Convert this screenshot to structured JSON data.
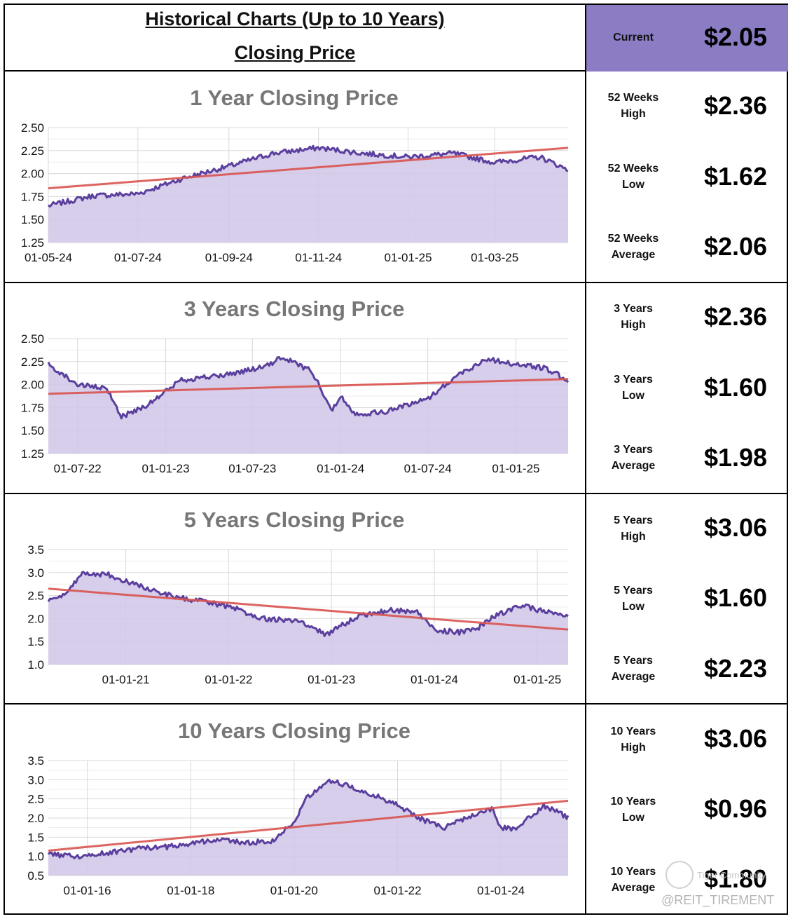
{
  "header": {
    "title_line1": "Historical Charts (Up to 10 Years)",
    "title_line2": "Closing Price"
  },
  "current": {
    "label": "Current",
    "value": "$2.05"
  },
  "colors": {
    "accent": "#8b7cc3",
    "line": "#5b3f9e",
    "fill": "#cfc6e6",
    "trend": "#d9534f",
    "grid": "#d9d9d9",
    "title_gray": "#777777"
  },
  "sections": [
    {
      "stats": [
        {
          "label": "52 Weeks\nHigh",
          "value": "$2.36"
        },
        {
          "label": "52 Weeks\nLow",
          "value": "$1.62"
        },
        {
          "label": "52 Weeks\nAverage",
          "value": "$2.06"
        }
      ]
    },
    {
      "stats": [
        {
          "label": "3 Years\nHigh",
          "value": "$2.36"
        },
        {
          "label": "3 Years\nLow",
          "value": "$1.60"
        },
        {
          "label": "3 Years\nAverage",
          "value": "$1.98"
        }
      ]
    },
    {
      "stats": [
        {
          "label": "5 Years\nHigh",
          "value": "$3.06"
        },
        {
          "label": "5 Years\nLow",
          "value": "$1.60"
        },
        {
          "label": "5 Years\nAverage",
          "value": "$2.23"
        }
      ]
    },
    {
      "stats": [
        {
          "label": "10 Years\nHigh",
          "value": "$3.06"
        },
        {
          "label": "10 Years\nLow",
          "value": "$0.96"
        },
        {
          "label": "10 Years\nAverage",
          "value": "$1.80"
        }
      ]
    }
  ],
  "chart_data": [
    {
      "type": "area",
      "title": "1 Year Closing Price",
      "ylim": [
        1.25,
        2.5
      ],
      "yticks": [
        "2.50",
        "2.25",
        "2.00",
        "1.75",
        "1.50",
        "1.25"
      ],
      "xticks": [
        "01-05-24",
        "01-07-24",
        "01-09-24",
        "01-11-24",
        "01-01-25",
        "01-03-25"
      ],
      "x": [
        "2024-05-01",
        "2024-06-01",
        "2024-07-01",
        "2024-08-01",
        "2024-09-01",
        "2024-10-01",
        "2024-11-01",
        "2024-12-01",
        "2025-01-01",
        "2025-02-01",
        "2025-03-01",
        "2025-04-01",
        "2025-04-20"
      ],
      "series": [
        {
          "values": [
            1.65,
            1.76,
            1.78,
            1.95,
            2.08,
            2.22,
            2.28,
            2.22,
            2.18,
            2.22,
            2.12,
            2.18,
            2.04
          ]
        }
      ],
      "trend": [
        1.84,
        2.28
      ],
      "grid": true
    },
    {
      "type": "area",
      "title": "3 Years Closing Price",
      "ylim": [
        1.25,
        2.5
      ],
      "yticks": [
        "2.50",
        "2.25",
        "2.00",
        "1.75",
        "1.50",
        "1.25"
      ],
      "xticks": [
        "01-07-22",
        "01-01-23",
        "01-07-23",
        "01-01-24",
        "01-07-24",
        "01-01-25"
      ],
      "x": [
        "2022-05-01",
        "2022-07-01",
        "2022-09-01",
        "2022-10-01",
        "2022-12-01",
        "2023-02-01",
        "2023-05-01",
        "2023-08-01",
        "2023-09-01",
        "2023-11-01",
        "2023-12-15",
        "2024-01-01",
        "2024-02-01",
        "2024-04-01",
        "2024-07-01",
        "2024-09-01",
        "2024-11-01",
        "2025-01-01",
        "2025-03-01",
        "2025-04-20"
      ],
      "series": [
        {
          "values": [
            2.22,
            2.0,
            1.95,
            1.65,
            1.8,
            2.05,
            2.1,
            2.2,
            2.3,
            2.15,
            1.72,
            1.88,
            1.68,
            1.7,
            1.85,
            2.1,
            2.28,
            2.22,
            2.18,
            2.05
          ]
        }
      ],
      "trend": [
        1.9,
        2.06
      ],
      "grid": true
    },
    {
      "type": "area",
      "title": "5 Years Closing Price",
      "ylim": [
        1.0,
        3.5
      ],
      "yticks": [
        "3.5",
        "3.0",
        "2.5",
        "2.0",
        "1.5",
        "1.0"
      ],
      "xticks": [
        "01-01-21",
        "01-01-22",
        "01-01-23",
        "01-01-24",
        "01-01-25"
      ],
      "x": [
        "2020-04-01",
        "2020-06-01",
        "2020-08-01",
        "2020-11-01",
        "2021-02-01",
        "2021-07-01",
        "2021-10-01",
        "2022-02-01",
        "2022-05-01",
        "2022-09-01",
        "2022-12-15",
        "2023-04-01",
        "2023-08-01",
        "2023-11-01",
        "2024-01-01",
        "2024-04-01",
        "2024-06-01",
        "2024-08-01",
        "2024-11-01",
        "2025-02-01",
        "2025-04-20"
      ],
      "series": [
        {
          "values": [
            2.4,
            2.5,
            3.0,
            2.95,
            2.75,
            2.45,
            2.38,
            2.2,
            2.0,
            1.95,
            1.65,
            2.05,
            2.18,
            2.15,
            1.75,
            1.7,
            1.78,
            2.05,
            2.28,
            2.15,
            2.02
          ]
        }
      ],
      "trend": [
        2.65,
        1.76
      ],
      "grid": true
    },
    {
      "type": "area",
      "title": "10 Years Closing Price",
      "ylim": [
        0.5,
        3.5
      ],
      "yticks": [
        "3.5",
        "3.0",
        "2.5",
        "2.0",
        "1.5",
        "1.0",
        "0.5"
      ],
      "xticks": [
        "01-01-16",
        "01-01-18",
        "01-01-20",
        "01-01-22",
        "01-01-24"
      ],
      "x": [
        "2015-04-01",
        "2016-01-01",
        "2016-06-01",
        "2017-01-01",
        "2017-08-01",
        "2018-01-01",
        "2018-08-01",
        "2019-01-01",
        "2019-08-01",
        "2020-01-01",
        "2020-04-01",
        "2020-09-01",
        "2021-04-01",
        "2021-12-01",
        "2022-06-01",
        "2022-12-01",
        "2023-06-01",
        "2023-11-01",
        "2024-01-01",
        "2024-04-01",
        "2024-11-01",
        "2025-04-20"
      ],
      "series": [
        {
          "values": [
            1.05,
            1.0,
            1.1,
            1.2,
            1.25,
            1.35,
            1.45,
            1.35,
            1.4,
            1.9,
            2.55,
            3.0,
            2.75,
            2.4,
            2.0,
            1.75,
            2.05,
            2.25,
            1.75,
            1.7,
            2.32,
            2.02
          ]
        }
      ],
      "trend": [
        1.15,
        2.45
      ],
      "grid": true
    }
  ],
  "watermark": {
    "brand": "Tiger Community",
    "handle": "@REIT_TIREMENT"
  }
}
